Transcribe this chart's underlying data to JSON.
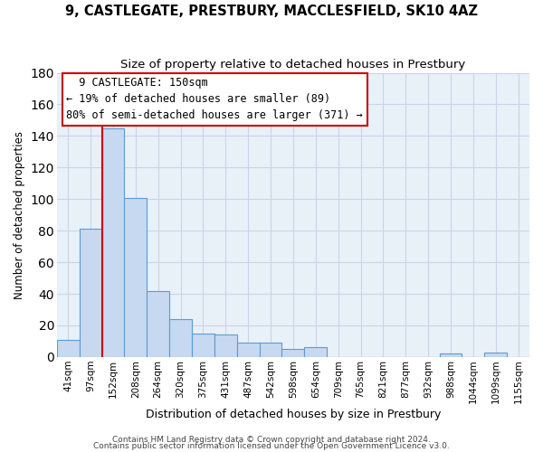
{
  "title": "9, CASTLEGATE, PRESTBURY, MACCLESFIELD, SK10 4AZ",
  "subtitle": "Size of property relative to detached houses in Prestbury",
  "xlabel": "Distribution of detached houses by size in Prestbury",
  "ylabel": "Number of detached properties",
  "bar_color": "#c6d9f0",
  "bar_edge_color": "#5b9bd5",
  "categories": [
    "41sqm",
    "97sqm",
    "152sqm",
    "208sqm",
    "264sqm",
    "320sqm",
    "375sqm",
    "431sqm",
    "487sqm",
    "542sqm",
    "598sqm",
    "654sqm",
    "709sqm",
    "765sqm",
    "821sqm",
    "877sqm",
    "932sqm",
    "988sqm",
    "1044sqm",
    "1099sqm",
    "1155sqm"
  ],
  "values": [
    11,
    81,
    145,
    101,
    42,
    24,
    15,
    14,
    9,
    9,
    5,
    6,
    0,
    0,
    0,
    0,
    0,
    2,
    0,
    3,
    0
  ],
  "ylim": [
    0,
    180
  ],
  "yticks": [
    0,
    20,
    40,
    60,
    80,
    100,
    120,
    140,
    160,
    180
  ],
  "marker_bar_index": 2,
  "marker_color": "#cc0000",
  "annotation_title": "9 CASTLEGATE: 150sqm",
  "annotation_line1": "← 19% of detached houses are smaller (89)",
  "annotation_line2": "80% of semi-detached houses are larger (371) →",
  "annotation_box_color": "#ffffff",
  "annotation_box_edge": "#cc0000",
  "footnote1": "Contains HM Land Registry data © Crown copyright and database right 2024.",
  "footnote2": "Contains public sector information licensed under the Open Government Licence v3.0.",
  "background_color": "#ffffff",
  "plot_bg_color": "#e8f0f8",
  "grid_color": "#c8d4e8",
  "title_fontsize": 10.5,
  "subtitle_fontsize": 9.5,
  "ylabel_fontsize": 8.5,
  "xlabel_fontsize": 9,
  "tick_fontsize": 7.5,
  "annot_fontsize": 8.5,
  "footnote_fontsize": 6.5
}
